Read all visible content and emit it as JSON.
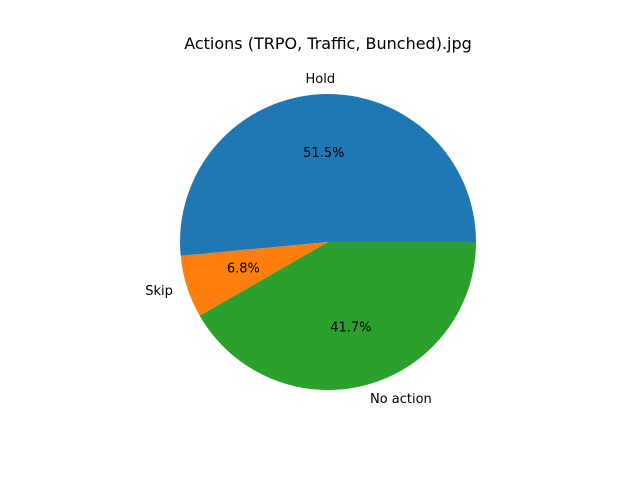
{
  "chart_data": {
    "type": "pie",
    "title": "Actions (TRPO, Traffic, Bunched).jpg",
    "slices": [
      {
        "label": "Hold",
        "value": 51.5,
        "pct_text": "51.5%",
        "color": "#1f77b4"
      },
      {
        "label": "Skip",
        "value": 6.8,
        "pct_text": "6.8%",
        "color": "#ff7f0e"
      },
      {
        "label": "No action",
        "value": 41.7,
        "pct_text": "41.7%",
        "color": "#2ca02c"
      }
    ],
    "start_angle_deg": 0,
    "direction": "counterclockwise",
    "legend": "none"
  }
}
